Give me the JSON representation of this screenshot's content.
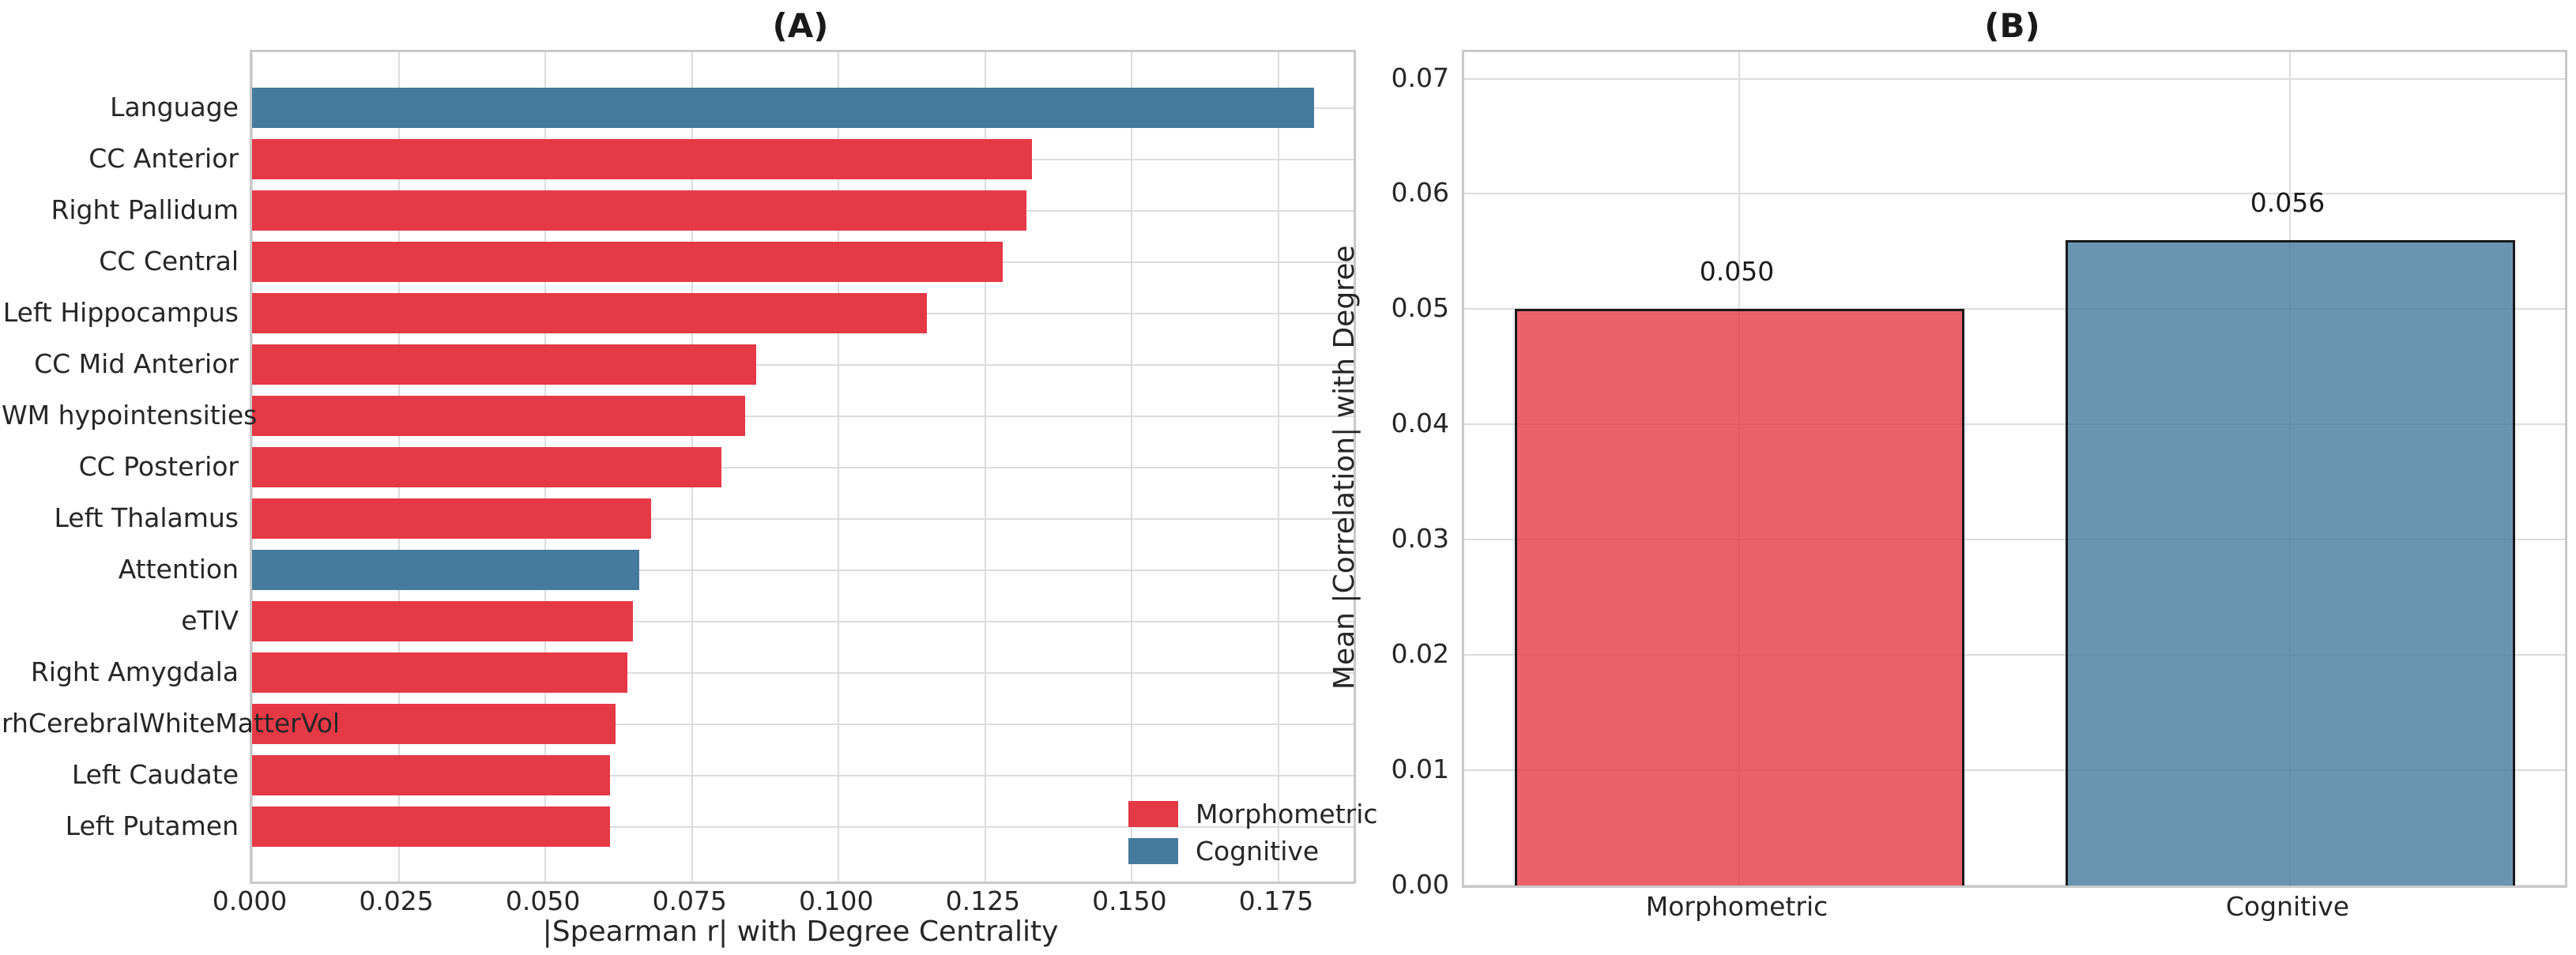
{
  "colors": {
    "morphometric": "#e63946",
    "cognitive": "#457b9d",
    "morphometric_translucent": "rgba(230,57,70,0.8)",
    "cognitive_translucent": "rgba(69,123,157,0.8)",
    "bar_edge": "#1a1a1a",
    "grid": "#dcdcdc",
    "spine": "#c9c9c9",
    "text": "#262626",
    "background": "#ffffff"
  },
  "chart_data": [
    {
      "id": "A",
      "type": "bar",
      "orientation": "horizontal",
      "title": "(A)",
      "xlabel": "|Spearman r| with Degree Centrality",
      "ylabel": "",
      "categories": [
        "Language",
        "CC Anterior",
        "Right Pallidum",
        "CC Central",
        "Left Hippocampus",
        "CC Mid Anterior",
        "WM hypointensities",
        "CC Posterior",
        "Left Thalamus",
        "Attention",
        "eTIV",
        "Right Amygdala",
        "rhCerebralWhiteMatterVol",
        "Left Caudate",
        "Left Putamen"
      ],
      "values": [
        0.181,
        0.133,
        0.132,
        0.128,
        0.115,
        0.086,
        0.084,
        0.08,
        0.068,
        0.066,
        0.065,
        0.064,
        0.062,
        0.061,
        0.061
      ],
      "groups": [
        "Cognitive",
        "Morphometric",
        "Morphometric",
        "Morphometric",
        "Morphometric",
        "Morphometric",
        "Morphometric",
        "Morphometric",
        "Morphometric",
        "Cognitive",
        "Morphometric",
        "Morphometric",
        "Morphometric",
        "Morphometric",
        "Morphometric"
      ],
      "xticks": [
        0,
        0.025,
        0.05,
        0.075,
        0.1,
        0.125,
        0.15,
        0.175
      ],
      "xtick_labels": [
        "0.000",
        "0.025",
        "0.050",
        "0.075",
        "0.100",
        "0.125",
        "0.150",
        "0.175"
      ],
      "xlim": [
        0,
        0.1878
      ],
      "grid": true,
      "legend": {
        "position": "lower right",
        "entries": [
          {
            "label": "Morphometric",
            "color": "#e63946"
          },
          {
            "label": "Cognitive",
            "color": "#457b9d"
          }
        ]
      }
    },
    {
      "id": "B",
      "type": "bar",
      "orientation": "vertical",
      "title": "(B)",
      "xlabel": "",
      "ylabel": "Mean |Correlation| with Degree",
      "categories": [
        "Morphometric",
        "Cognitive"
      ],
      "values": [
        0.05,
        0.056
      ],
      "bar_labels": [
        "0.050",
        "0.056"
      ],
      "bar_colors": [
        "rgba(230,57,70,0.8)",
        "rgba(69,123,157,0.8)"
      ],
      "bar_edge_color": "#1a1a1a",
      "yticks": [
        0,
        0.01,
        0.02,
        0.03,
        0.04,
        0.05,
        0.06,
        0.07
      ],
      "ytick_labels": [
        "0.00",
        "0.01",
        "0.02",
        "0.03",
        "0.04",
        "0.05",
        "0.06",
        "0.07"
      ],
      "ylim": [
        0,
        0.0723
      ],
      "grid": true
    }
  ]
}
